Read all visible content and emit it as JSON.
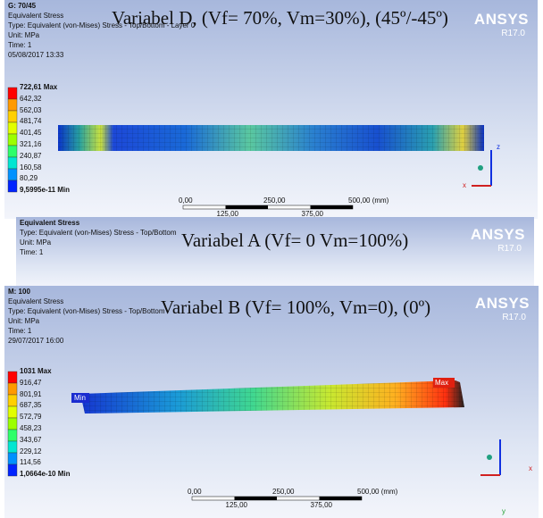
{
  "panels": [
    {
      "header": [
        "G: 70/45",
        "Equivalent Stress",
        "Type: Equivalent (von-Mises) Stress - Top/Bottom - Layer 0",
        "Unit: MPa",
        "Time: 1",
        "05/08/2017 13:33"
      ],
      "title": "Variabel D, (Vf= 70%, Vm=30%), (45º/-45º)",
      "logo": "ANSYS",
      "version": "R17.0",
      "legend": [
        "722,61 Max",
        "642,32",
        "562,03",
        "481,74",
        "401,45",
        "321,16",
        "240,87",
        "160,58",
        "80,29",
        "9,5995e-11 Min"
      ],
      "scale_top": [
        "0,00",
        "250,00",
        "500,00 (mm)"
      ],
      "scale_bottom": [
        "125,00",
        "375,00"
      ],
      "axes": [
        "z",
        "x"
      ]
    },
    {
      "header": [
        "Equivalent Stress",
        "Type: Equivalent (von-Mises) Stress - Top/Bottom",
        "Unit: MPa",
        "Time: 1"
      ],
      "title": "Variabel A  (Vf= 0 Vm=100%)",
      "logo": "ANSYS",
      "version": "R17.0"
    },
    {
      "header": [
        "M: 100",
        "Equivalent Stress",
        "Type: Equivalent (von-Mises) Stress - Top/Bottom",
        "Unit: MPa",
        "Time: 1",
        "29/07/2017 16:00"
      ],
      "title": "Variabel B (Vf= 100%, Vm=0), (0º)",
      "logo": "ANSYS",
      "version": "R17.0",
      "legend": [
        "1031 Max",
        "916,47",
        "801,91",
        "687,35",
        "572,79",
        "458,23",
        "343,67",
        "229,12",
        "114,56",
        "1,0664e-10 Min"
      ],
      "scale_top": [
        "0,00",
        "250,00",
        "500,00 (mm)"
      ],
      "scale_bottom": [
        "125,00",
        "375,00"
      ],
      "tags": [
        "Min",
        "Max"
      ],
      "axes": [
        "x",
        "y"
      ]
    }
  ]
}
